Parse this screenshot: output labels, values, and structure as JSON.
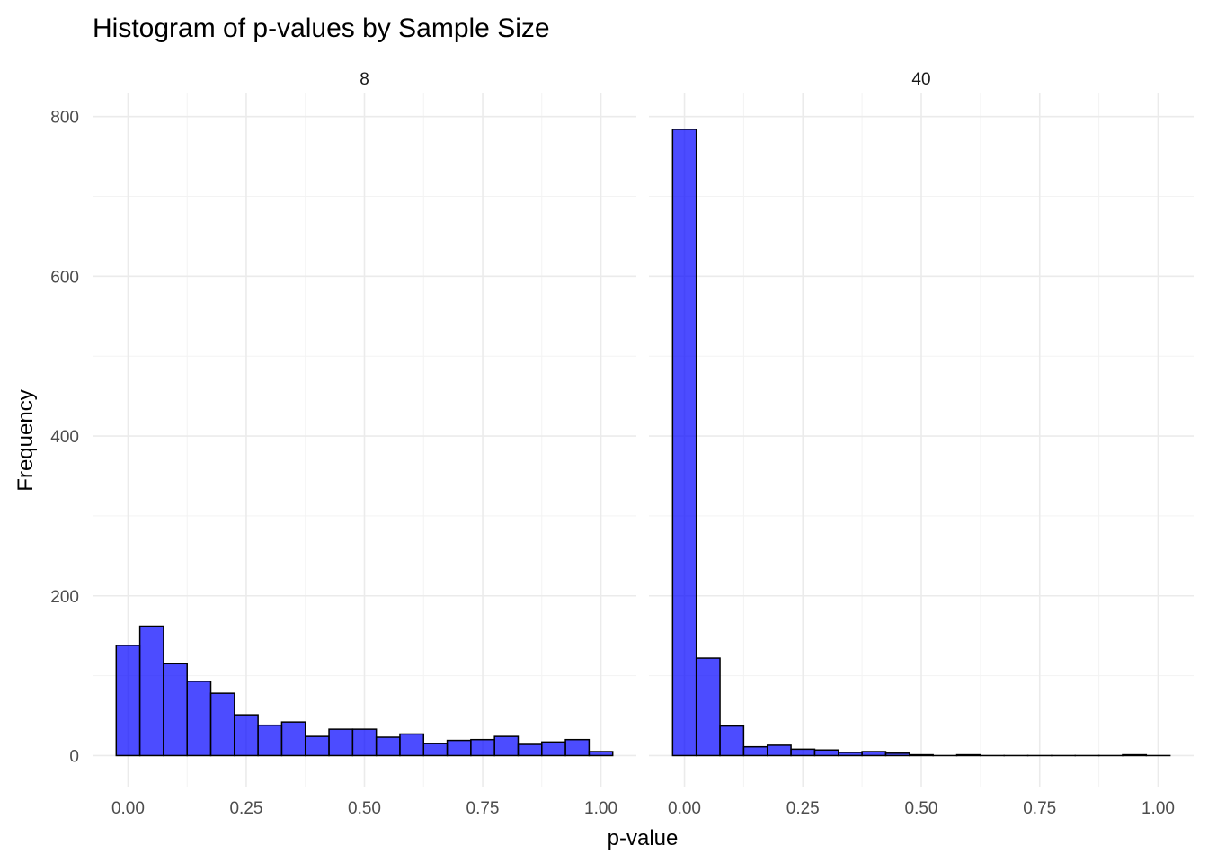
{
  "chart_data": {
    "type": "bar",
    "title": "Histogram of p-values by Sample Size",
    "xlabel": "p-value",
    "ylabel": "Frequency",
    "xlim": [
      -0.075,
      1.075
    ],
    "ylim": [
      -40,
      830
    ],
    "x_ticks": [
      0,
      0.25,
      0.5,
      0.75,
      1
    ],
    "x_tick_labels": [
      "0.00",
      "0.25",
      "0.50",
      "0.75",
      "1.00"
    ],
    "y_ticks": [
      0,
      200,
      400,
      600,
      800
    ],
    "y_tick_labels": [
      "0",
      "200",
      "400",
      "600",
      "800"
    ],
    "grid": true,
    "bin_width": 0.05,
    "bin_centers": [
      0,
      0.05,
      0.1,
      0.15,
      0.2,
      0.25,
      0.3,
      0.35,
      0.4,
      0.45,
      0.5,
      0.55,
      0.6,
      0.65,
      0.7,
      0.75,
      0.8,
      0.85,
      0.9,
      0.95,
      1.0
    ],
    "fill_color": "#0000FF",
    "fill_opacity": 0.7,
    "outline_color": "#000000",
    "panels": [
      {
        "label": "8",
        "values": [
          138,
          162,
          115,
          93,
          78,
          51,
          38,
          42,
          24,
          33,
          33,
          23,
          27,
          15,
          19,
          20,
          24,
          14,
          17,
          20,
          5
        ]
      },
      {
        "label": "40",
        "values": [
          784,
          122,
          37,
          11,
          13,
          8,
          7,
          4,
          5,
          3,
          1,
          0,
          1,
          0,
          0,
          0,
          0,
          0,
          0,
          1,
          0
        ]
      }
    ]
  }
}
